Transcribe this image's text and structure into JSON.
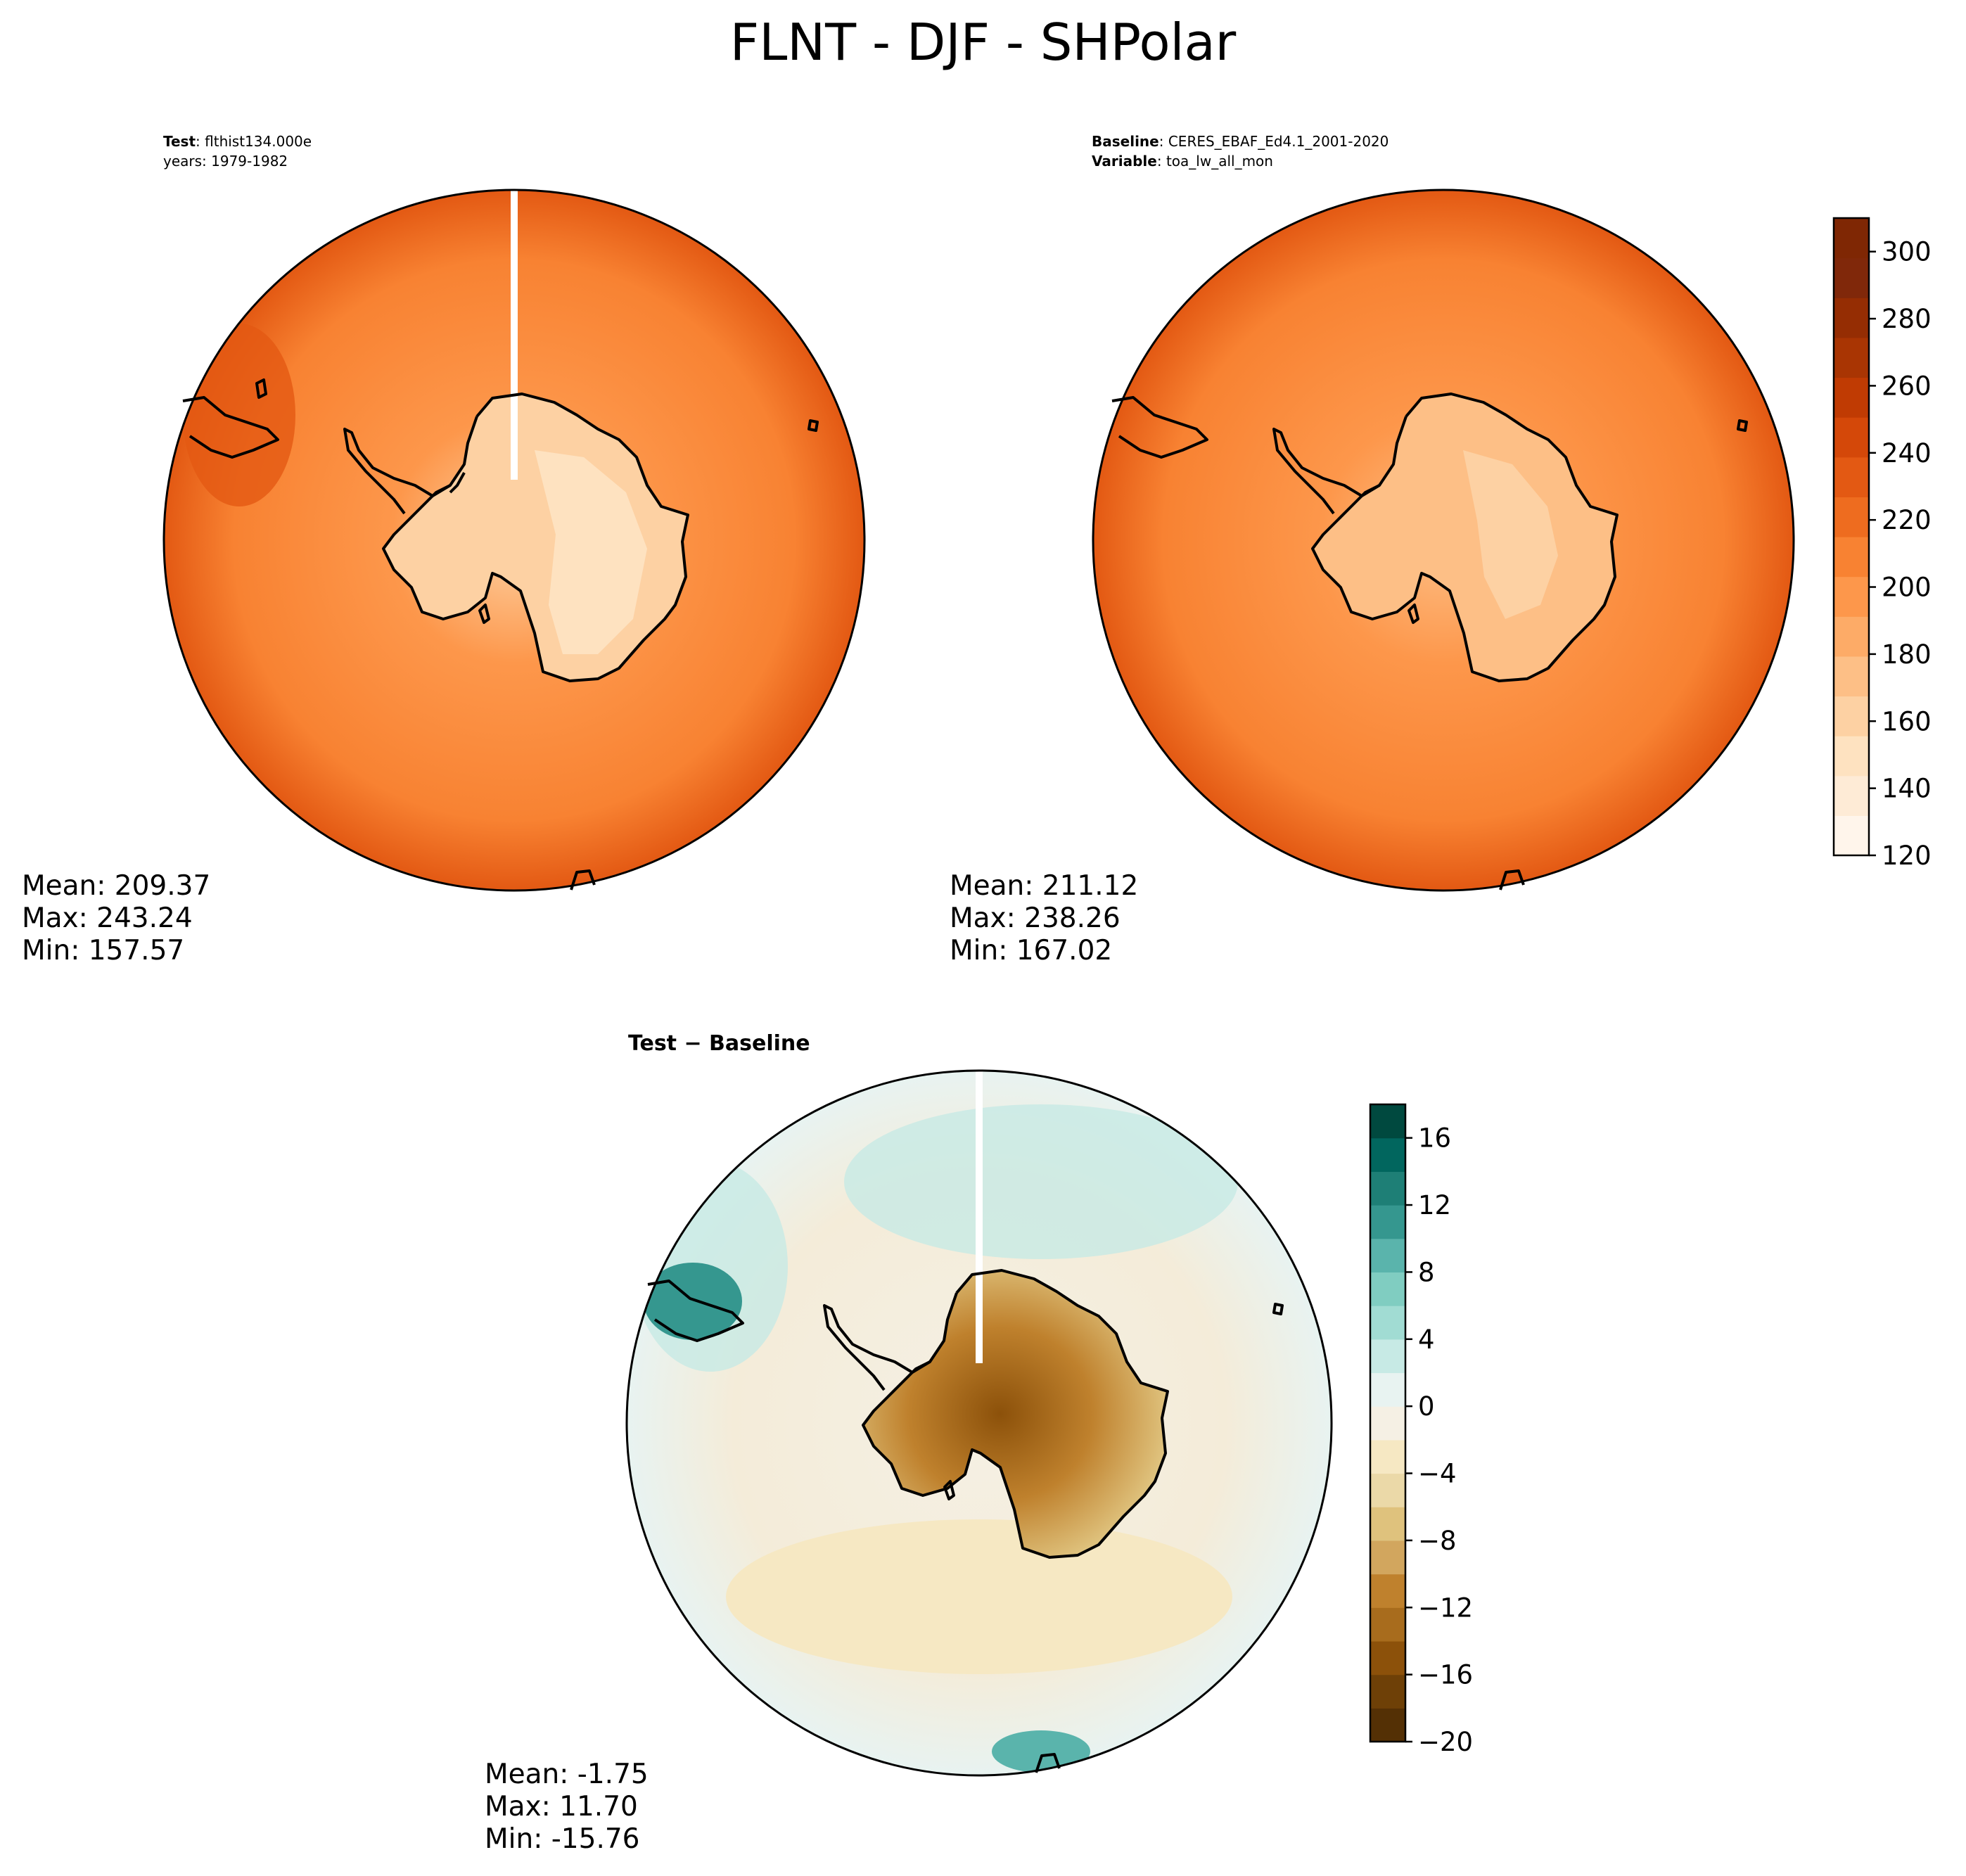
{
  "figure_title": "FLNT - DJF - SHPolar",
  "test_panel": {
    "label_key_1": "Test",
    "label_val_1": "flthist134.000e",
    "label_line_2": "years: 1979-1982",
    "stats": {
      "mean": "Mean: 209.37",
      "max": "Max: 243.24",
      "min": "Min: 157.57"
    }
  },
  "baseline_panel": {
    "label_key_1": "Baseline",
    "label_val_1": "CERES_EBAF_Ed4.1_2001-2020",
    "label_key_2": "Variable",
    "label_val_2": "toa_lw_all_mon",
    "stats": {
      "mean": "Mean: 211.12",
      "max": "Max: 238.26",
      "min": "Min: 167.02"
    }
  },
  "diff_panel": {
    "title": "Test − Baseline",
    "stats": {
      "mean": "Mean: -1.75",
      "max": "Max: 11.70",
      "min": "Min: -15.76"
    }
  },
  "chart_data": [
    {
      "type": "heatmap",
      "projection": "south-polar-stereographic",
      "panel": "test",
      "colormap": "Oranges",
      "mean": 209.37,
      "max": 243.24,
      "min": 157.57
    },
    {
      "type": "heatmap",
      "projection": "south-polar-stereographic",
      "panel": "baseline",
      "colormap": "Oranges",
      "mean": 211.12,
      "max": 238.26,
      "min": 167.02
    },
    {
      "type": "heatmap",
      "projection": "south-polar-stereographic",
      "panel": "difference",
      "colormap": "BrBG",
      "mean": -1.75,
      "max": 11.7,
      "min": -15.76
    }
  ],
  "colorbars": {
    "main": {
      "range": [
        120,
        310
      ],
      "ticks": [
        "120",
        "140",
        "160",
        "180",
        "200",
        "220",
        "240",
        "260",
        "280",
        "300"
      ],
      "colors": [
        "#fff5eb",
        "#feebd6",
        "#fee2c0",
        "#fdd1a3",
        "#fdbf86",
        "#fdab67",
        "#fd974b",
        "#f88232",
        "#ee6c1f",
        "#e35913",
        "#d44809",
        "#c03b03",
        "#a93503",
        "#952d03",
        "#80280a",
        "#7f2704"
      ]
    },
    "diff": {
      "range": [
        -20,
        18
      ],
      "ticks": [
        "−20",
        "−16",
        "−12",
        "−8",
        "−4",
        "0",
        "4",
        "8",
        "12",
        "16"
      ],
      "colors": [
        "#543005",
        "#6e4007",
        "#8c510a",
        "#a86c1d",
        "#bf812d",
        "#d2a65e",
        "#dfc27d",
        "#ebd9a8",
        "#f6e8c3",
        "#f5f0e4",
        "#e8f3f1",
        "#c7eae5",
        "#a1dcd3",
        "#80cdc1",
        "#5ab4ac",
        "#35978f",
        "#1e7f76",
        "#01665e",
        "#00493f"
      ]
    }
  }
}
